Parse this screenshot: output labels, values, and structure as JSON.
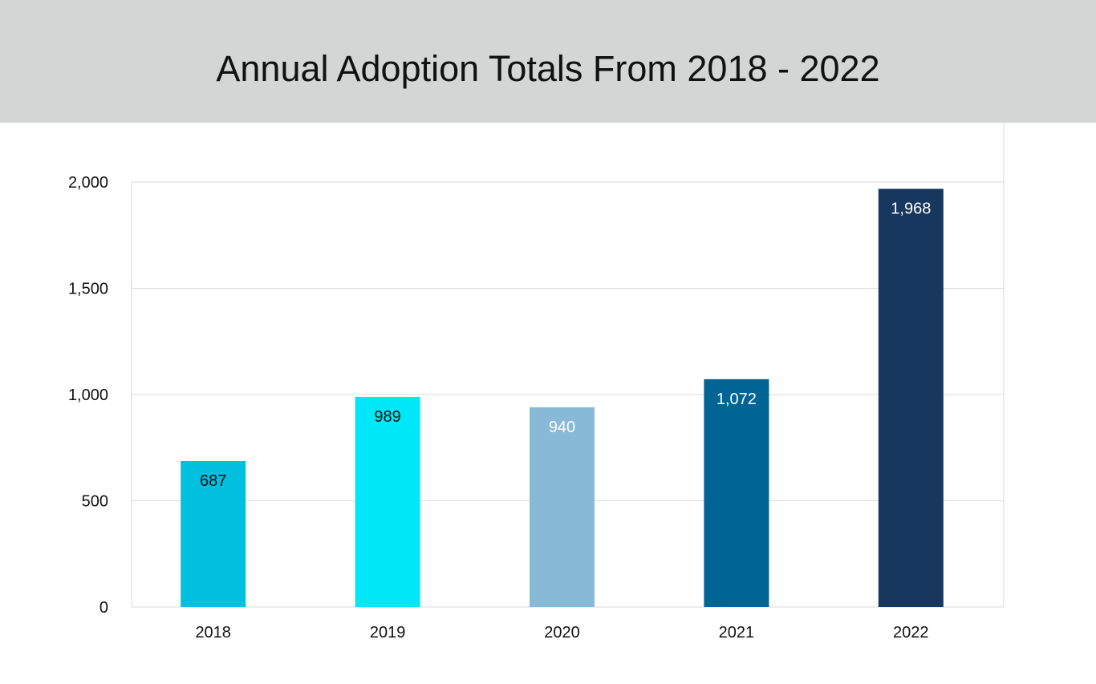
{
  "chart_data": {
    "type": "bar",
    "title": "Annual Adoption Totals From 2018 - 2022",
    "categories": [
      "2018",
      "2019",
      "2020",
      "2021",
      "2022"
    ],
    "values": [
      687,
      989,
      940,
      1072,
      1968
    ],
    "data_labels": [
      "687",
      "989",
      "940",
      "1,072",
      "1,968"
    ],
    "bar_colors": [
      "#00bfdf",
      "#00e8f8",
      "#88b9d6",
      "#006495",
      "#17375e"
    ],
    "label_colors": [
      "#111111",
      "#111111",
      "#ffffff",
      "#ffffff",
      "#ffffff"
    ],
    "ylim": [
      0,
      2000
    ],
    "yticks": [
      0,
      500,
      1000,
      1500,
      2000
    ],
    "ytick_labels": [
      "0",
      "500",
      "1,000",
      "1,500",
      "2,000"
    ],
    "grid": true,
    "legend": "none"
  }
}
